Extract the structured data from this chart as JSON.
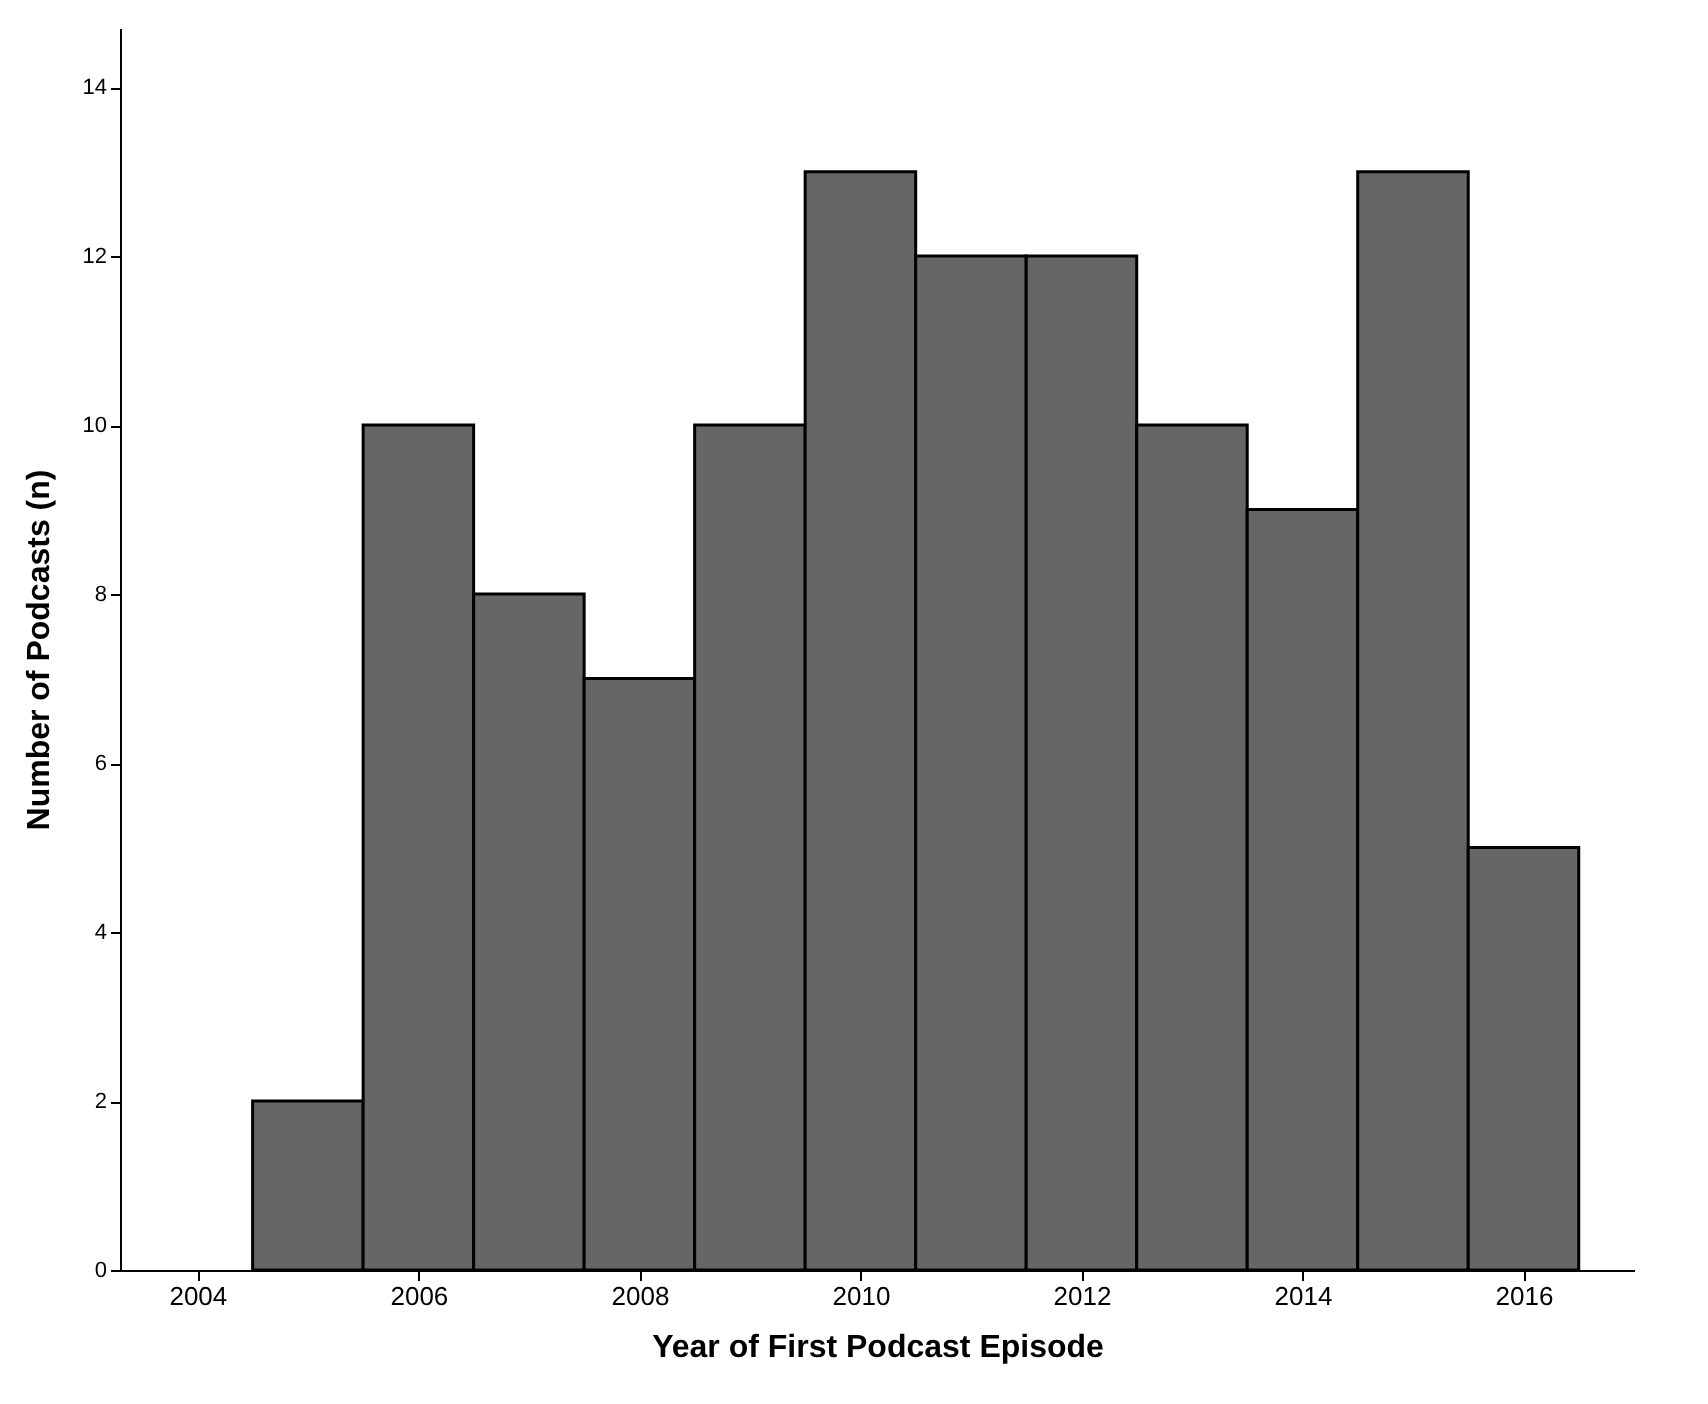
{
  "chart_data": {
    "type": "histogram",
    "xlabel": "Year of First Podcast Episode",
    "ylabel": "Number of Podcasts (n)",
    "bins": [
      2004.5,
      2005.5,
      2006.5,
      2007.5,
      2008.5,
      2009.5,
      2010.5,
      2011.5,
      2012.5,
      2013.5,
      2014.5,
      2015.5,
      2016.5
    ],
    "values": [
      2,
      10,
      8,
      7,
      10,
      13,
      12,
      12,
      10,
      9,
      13,
      5
    ],
    "color": "#666666",
    "xlim": [
      2003.3,
      2017
    ],
    "xticks": [
      2004,
      2006,
      2008,
      2010,
      2012,
      2014,
      2016
    ],
    "ylim": [
      0,
      14.7
    ],
    "yticks": [
      0,
      2,
      4,
      6,
      8,
      10,
      12,
      14
    ],
    "grid": false
  }
}
